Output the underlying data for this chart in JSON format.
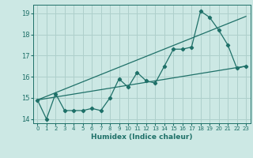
{
  "xlabel": "Humidex (Indice chaleur)",
  "ylabel": "",
  "bg_color": "#cce8e4",
  "grid_color": "#aecfcb",
  "line_color": "#1e7068",
  "xlim": [
    -0.5,
    23.5
  ],
  "ylim": [
    13.8,
    19.4
  ],
  "xticks": [
    0,
    1,
    2,
    3,
    4,
    5,
    6,
    7,
    8,
    9,
    10,
    11,
    12,
    13,
    14,
    15,
    16,
    17,
    18,
    19,
    20,
    21,
    22,
    23
  ],
  "yticks": [
    14,
    15,
    16,
    17,
    18,
    19
  ],
  "series1_x": [
    0,
    1,
    2,
    3,
    4,
    5,
    6,
    7,
    8,
    9,
    10,
    11,
    12,
    13,
    14,
    15,
    16,
    17,
    18,
    19,
    20,
    21,
    22,
    23
  ],
  "series1_y": [
    14.9,
    14.0,
    15.2,
    14.4,
    14.4,
    14.4,
    14.5,
    14.4,
    15.0,
    15.9,
    15.5,
    16.2,
    15.8,
    15.7,
    16.5,
    17.3,
    17.3,
    17.4,
    19.1,
    18.8,
    18.2,
    17.5,
    16.4,
    16.5
  ],
  "series2_x": [
    0,
    23
  ],
  "series2_y": [
    14.9,
    16.5
  ],
  "series3_x": [
    0,
    23
  ],
  "series3_y": [
    14.9,
    18.85
  ]
}
